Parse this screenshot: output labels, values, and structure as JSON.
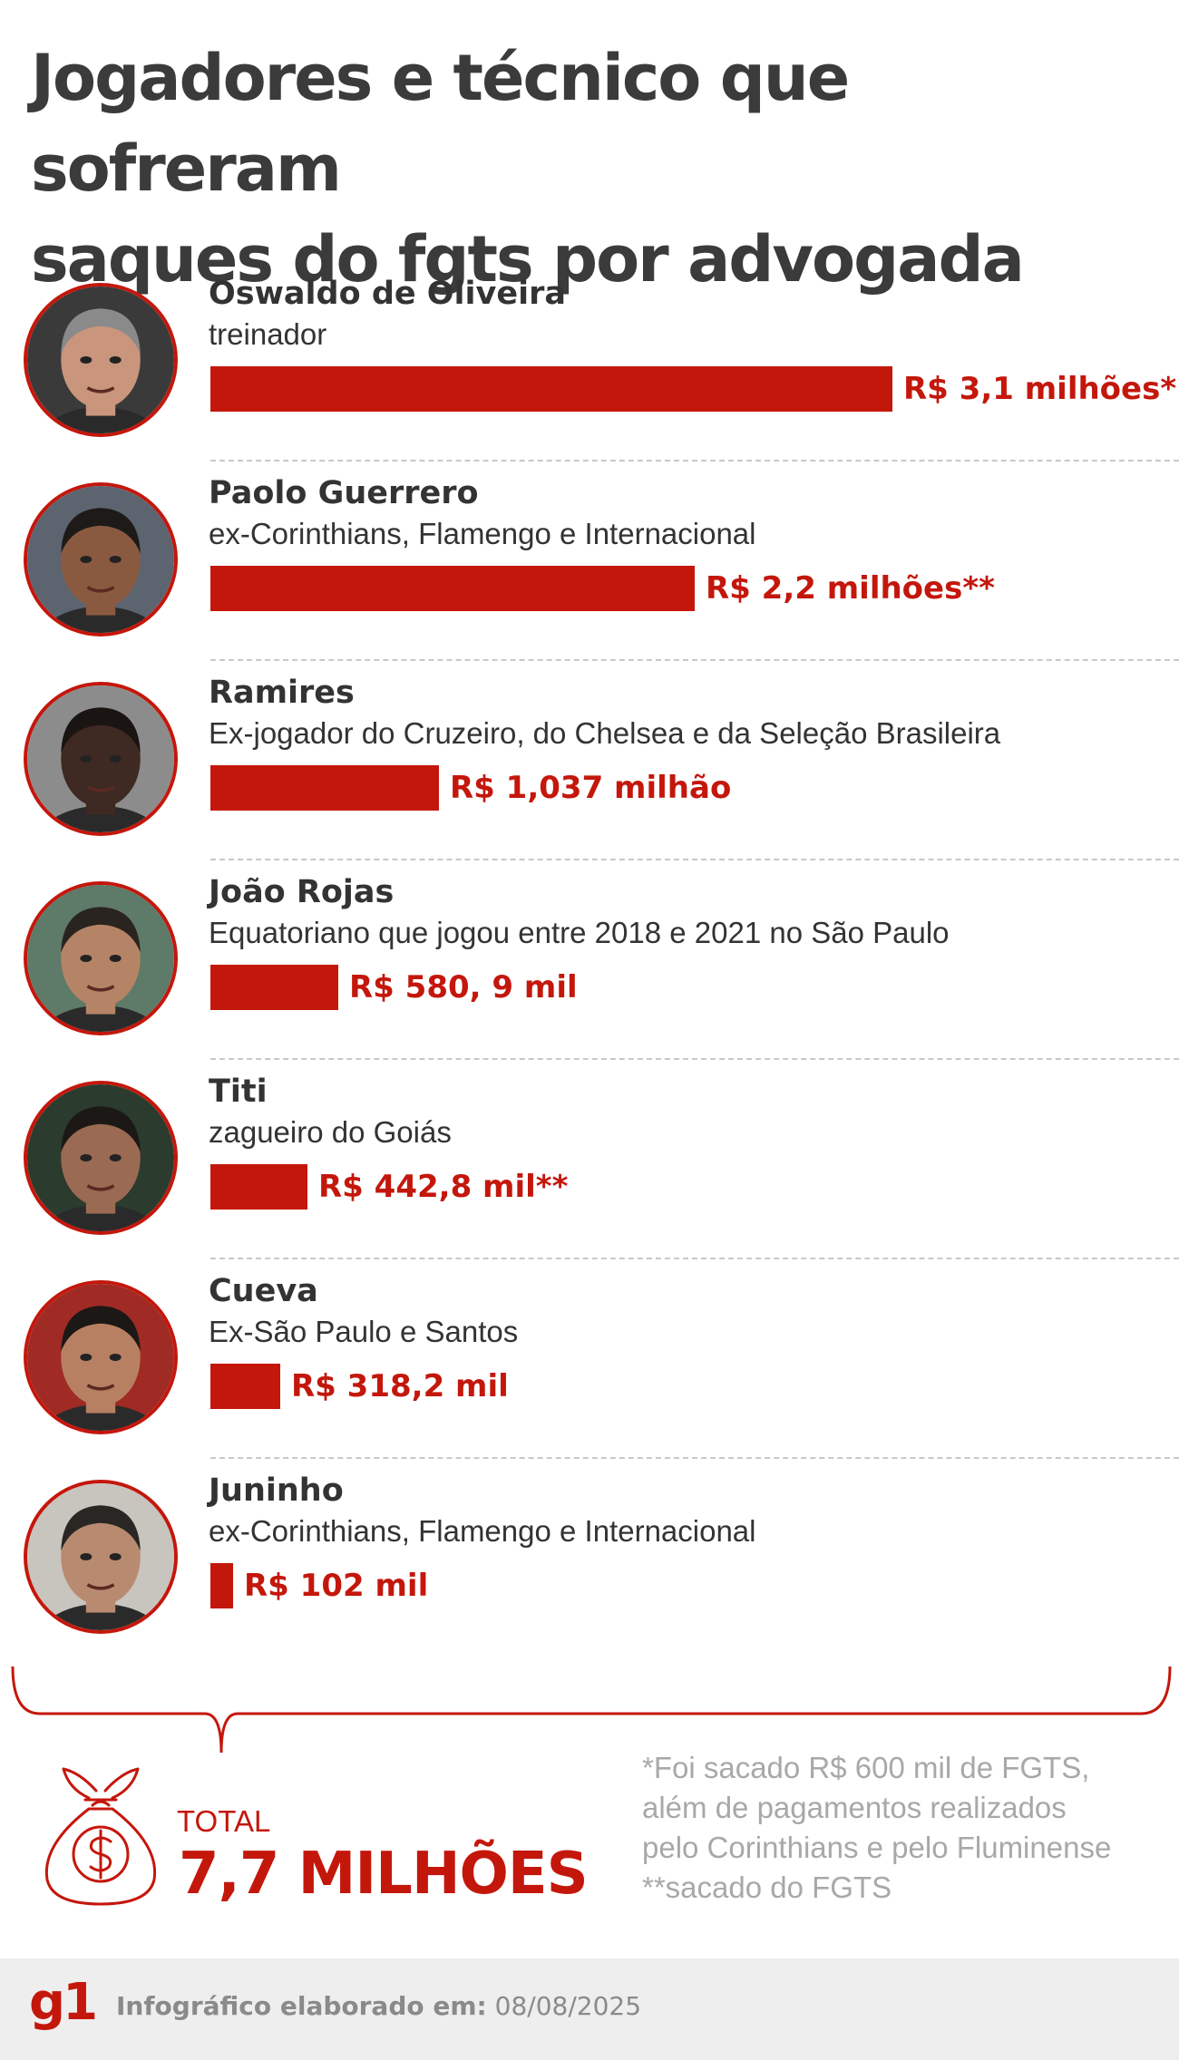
{
  "title_line1": "Jogadores e técnico que sofreram",
  "title_line2": "saques do fgts por advogada",
  "chart_data": {
    "type": "bar",
    "orientation": "horizontal",
    "title": "Jogadores e técnico que sofreram saques do fgts por advogada",
    "units": "R$",
    "categories": [
      "Oswaldo de Oliveira",
      "Paolo Guerrero",
      "Ramires",
      "João Rojas",
      "Titi",
      "Cueva",
      "Juninho"
    ],
    "values": [
      3100000,
      2200000,
      1037000,
      580900,
      442800,
      318200,
      102000
    ],
    "grid": false,
    "legend": "none"
  },
  "people": [
    {
      "name": "Oswaldo de Oliveira",
      "role": "treinador",
      "value_label": "R$ 3,1 milhões*",
      "value": 3100000
    },
    {
      "name": "Paolo Guerrero",
      "role": "ex-Corinthians, Flamengo e Internacional",
      "value_label": "R$ 2,2 milhões**",
      "value": 2200000
    },
    {
      "name": "Ramires",
      "role": "Ex-jogador do Cruzeiro, do Chelsea e da Seleção Brasileira",
      "value_label": "R$ 1,037 milhão",
      "value": 1037000
    },
    {
      "name": "João Rojas",
      "role": "Equatoriano que jogou entre 2018 e 2021 no São Paulo",
      "value_label": "R$ 580, 9 mil",
      "value": 580900
    },
    {
      "name": "Titi",
      "role": "zagueiro do Goiás",
      "value_label": "R$ 442,8 mil**",
      "value": 442800
    },
    {
      "name": "Cueva",
      "role": "Ex-São Paulo e Santos",
      "value_label": "R$ 318,2 mil",
      "value": 318200
    },
    {
      "name": "Juninho",
      "role": "ex-Corinthians, Flamengo e Internacional",
      "value_label": "R$ 102 mil",
      "value": 102000
    }
  ],
  "total": {
    "label": "TOTAL",
    "value": "7,7 MILHÕES"
  },
  "footnotes": [
    "*Foi sacado R$ 600 mil de FGTS,",
    "além de pagamentos realizados",
    "pelo Corinthians e pelo Fluminense",
    "**sacado do FGTS"
  ],
  "footer": {
    "logo": "g1",
    "credit_label": "Infográfico elaborado em:",
    "credit_date": "08/08/2025"
  },
  "colors": {
    "accent": "#c4170c",
    "text": "#333333",
    "muted": "#a8a8a8",
    "footer_bg": "#eeeeee"
  },
  "icons": [
    "person-photo",
    "money-bag-icon"
  ]
}
